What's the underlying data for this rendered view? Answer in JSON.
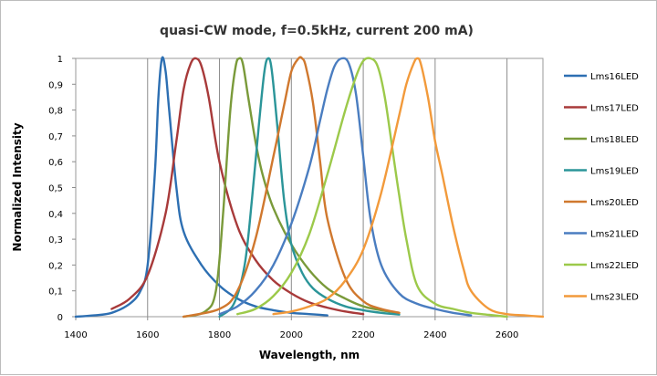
{
  "chart_data": {
    "type": "line",
    "title": "quasi-CW mode, f=0.5kHz, current 200 mA)",
    "xlabel": "Wavelength, nm",
    "ylabel": "Normalized Intensity",
    "xlim": [
      1400,
      2700
    ],
    "ylim": [
      0,
      1
    ],
    "x_ticks": [
      "1400",
      "1600",
      "1800",
      "2000",
      "2200",
      "2400",
      "2600"
    ],
    "y_ticks": [
      "0",
      "0,1",
      "0,2",
      "0,3",
      "0,4",
      "0,5",
      "0,6",
      "0,7",
      "0,8",
      "0,9",
      "1"
    ],
    "x_gridlines": true,
    "y_gridlines": false,
    "legend_position": "right",
    "series": [
      {
        "name": "Lms16LED",
        "color": "#2d6fb2",
        "x": [
          1400,
          1450,
          1500,
          1550,
          1580,
          1600,
          1620,
          1630,
          1640,
          1650,
          1660,
          1680,
          1700,
          1750,
          1800,
          1850,
          1900,
          1950,
          2000,
          2050,
          2100
        ],
        "y": [
          0,
          0.005,
          0.015,
          0.05,
          0.1,
          0.2,
          0.55,
          0.85,
          1.0,
          0.95,
          0.8,
          0.5,
          0.33,
          0.2,
          0.12,
          0.07,
          0.04,
          0.025,
          0.015,
          0.01,
          0.005
        ]
      },
      {
        "name": "Lms17LED",
        "color": "#a83a3a",
        "x": [
          1500,
          1550,
          1600,
          1650,
          1680,
          1700,
          1720,
          1735,
          1750,
          1770,
          1800,
          1850,
          1900,
          1950,
          2000,
          2050,
          2100,
          2150,
          2200
        ],
        "y": [
          0.03,
          0.07,
          0.16,
          0.4,
          0.68,
          0.88,
          0.98,
          1.0,
          0.97,
          0.85,
          0.6,
          0.35,
          0.22,
          0.14,
          0.09,
          0.055,
          0.035,
          0.02,
          0.01
        ]
      },
      {
        "name": "Lms18LED",
        "color": "#7a9a3a",
        "x": [
          1700,
          1760,
          1790,
          1810,
          1830,
          1845,
          1855,
          1865,
          1880,
          1900,
          1920,
          1950,
          2000,
          2050,
          2100,
          2150,
          2200,
          2250,
          2300
        ],
        "y": [
          0,
          0.02,
          0.1,
          0.4,
          0.8,
          0.97,
          1.0,
          0.98,
          0.85,
          0.68,
          0.55,
          0.42,
          0.28,
          0.18,
          0.11,
          0.07,
          0.04,
          0.025,
          0.015
        ]
      },
      {
        "name": "Lms19LED",
        "color": "#2b9599",
        "x": [
          1800,
          1840,
          1870,
          1890,
          1910,
          1925,
          1935,
          1945,
          1960,
          1980,
          2000,
          2030,
          2060,
          2100,
          2150,
          2200,
          2250,
          2300
        ],
        "y": [
          0,
          0.05,
          0.2,
          0.45,
          0.75,
          0.95,
          1.0,
          0.96,
          0.75,
          0.45,
          0.28,
          0.17,
          0.11,
          0.07,
          0.04,
          0.025,
          0.015,
          0.008
        ]
      },
      {
        "name": "Lms20LED",
        "color": "#d0782e",
        "x": [
          1700,
          1800,
          1850,
          1900,
          1950,
          1980,
          2000,
          2020,
          2030,
          2040,
          2060,
          2080,
          2100,
          2150,
          2200,
          2250,
          2300
        ],
        "y": [
          0,
          0.03,
          0.1,
          0.3,
          0.62,
          0.82,
          0.95,
          1.0,
          1.0,
          0.97,
          0.83,
          0.6,
          0.38,
          0.15,
          0.06,
          0.03,
          0.015
        ]
      },
      {
        "name": "Lms21LED",
        "color": "#4a7dc0",
        "x": [
          1800,
          1850,
          1900,
          1950,
          2000,
          2050,
          2080,
          2100,
          2120,
          2140,
          2160,
          2180,
          2200,
          2220,
          2250,
          2300,
          2350,
          2400,
          2450,
          2500
        ],
        "y": [
          0.01,
          0.04,
          0.1,
          0.2,
          0.36,
          0.58,
          0.76,
          0.88,
          0.97,
          1.0,
          0.98,
          0.86,
          0.62,
          0.38,
          0.2,
          0.09,
          0.05,
          0.03,
          0.015,
          0.005
        ]
      },
      {
        "name": "Lms22LED",
        "color": "#9cc94a",
        "x": [
          1850,
          1900,
          1950,
          2000,
          2050,
          2100,
          2150,
          2180,
          2200,
          2220,
          2240,
          2260,
          2280,
          2300,
          2320,
          2350,
          2400,
          2450,
          2500,
          2550,
          2600
        ],
        "y": [
          0.01,
          0.03,
          0.08,
          0.17,
          0.32,
          0.55,
          0.8,
          0.93,
          0.99,
          1.0,
          0.97,
          0.85,
          0.66,
          0.47,
          0.3,
          0.12,
          0.05,
          0.03,
          0.015,
          0.007,
          0
        ]
      },
      {
        "name": "Lms23LED",
        "color": "#f29a3b",
        "x": [
          1950,
          2000,
          2050,
          2100,
          2150,
          2200,
          2250,
          2300,
          2320,
          2340,
          2350,
          2360,
          2380,
          2400,
          2420,
          2450,
          2480,
          2500,
          2550,
          2600,
          2650,
          2700
        ],
        "y": [
          0.01,
          0.02,
          0.04,
          0.07,
          0.14,
          0.26,
          0.48,
          0.78,
          0.9,
          0.98,
          1.0,
          0.98,
          0.85,
          0.68,
          0.55,
          0.35,
          0.18,
          0.1,
          0.03,
          0.01,
          0.005,
          0
        ]
      }
    ]
  }
}
